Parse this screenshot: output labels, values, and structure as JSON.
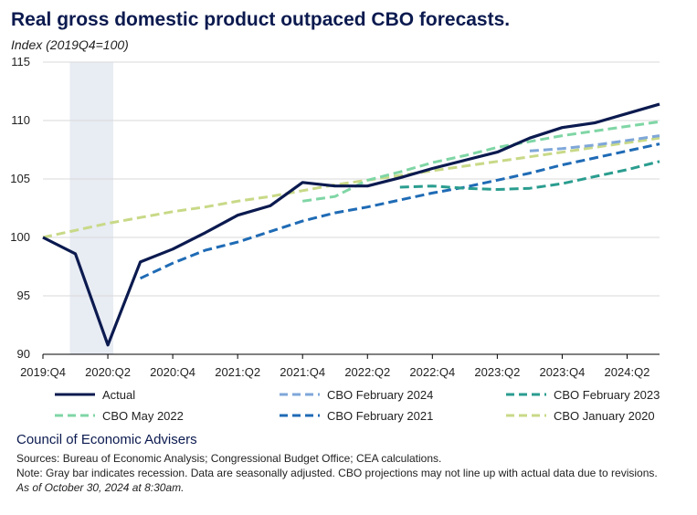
{
  "title": "Real gross domestic product outpaced CBO forecasts.",
  "subtitle": "Index (2019Q4=100)",
  "footer": {
    "org": "Council of Economic Advisers",
    "sources": "Sources: Bureau of Economic Analysis; Congressional Budget Office; CEA calculations.",
    "note": "Note: Gray bar indicates recession. Data are seasonally adjusted. CBO projections may not line up with actual data due to revisions.",
    "asof": "As of October 30, 2024 at 8:30am."
  },
  "colors": {
    "actual": "#0b1a4f",
    "feb2024": "#7fa7d9",
    "feb2023": "#2a9d8f",
    "may2022": "#7fd6a5",
    "feb2021": "#1f6bb5",
    "jan2020": "#c8d987",
    "recession": "#e8ecf3"
  },
  "chart_data": {
    "type": "line",
    "categories": [
      "2019:Q4",
      "2020:Q1",
      "2020:Q2",
      "2020:Q3",
      "2020:Q4",
      "2021:Q1",
      "2021:Q2",
      "2021:Q3",
      "2021:Q4",
      "2022:Q1",
      "2022:Q2",
      "2022:Q3",
      "2022:Q4",
      "2023:Q1",
      "2023:Q2",
      "2023:Q3",
      "2023:Q4",
      "2024:Q1",
      "2024:Q2",
      "2024:Q3"
    ],
    "tick_labels": [
      "2019:Q4",
      "2020:Q2",
      "2020:Q4",
      "2021:Q2",
      "2021:Q4",
      "2022:Q2",
      "2022:Q4",
      "2023:Q2",
      "2023:Q4",
      "2024:Q2"
    ],
    "ylim": [
      90,
      115
    ],
    "yticks": [
      90,
      95,
      100,
      105,
      110,
      115
    ],
    "grid": true,
    "legend_position": "bottom",
    "recession": {
      "start": "2020:Q1",
      "end": "2020:Q2"
    },
    "series": [
      {
        "name": "Actual",
        "key": "actual",
        "dash": false,
        "x": [
          "2019:Q4",
          "2020:Q1",
          "2020:Q2",
          "2020:Q3",
          "2020:Q4",
          "2021:Q1",
          "2021:Q2",
          "2021:Q3",
          "2021:Q4",
          "2022:Q1",
          "2022:Q2",
          "2022:Q3",
          "2022:Q4",
          "2023:Q1",
          "2023:Q2",
          "2023:Q3",
          "2023:Q4",
          "2024:Q1",
          "2024:Q2",
          "2024:Q3"
        ],
        "values": [
          100.0,
          98.6,
          90.8,
          97.9,
          99.0,
          100.4,
          101.9,
          102.7,
          104.7,
          104.4,
          104.4,
          105.1,
          105.9,
          106.6,
          107.3,
          108.5,
          109.4,
          109.8,
          110.6,
          111.4
        ]
      },
      {
        "name": "CBO February 2024",
        "key": "feb2024",
        "dash": true,
        "x": [
          "2023:Q3",
          "2023:Q4",
          "2024:Q1",
          "2024:Q2",
          "2024:Q3"
        ],
        "values": [
          107.4,
          107.6,
          107.9,
          108.3,
          108.7
        ]
      },
      {
        "name": "CBO February 2023",
        "key": "feb2023",
        "dash": true,
        "x": [
          "2022:Q3",
          "2022:Q4",
          "2023:Q1",
          "2023:Q2",
          "2023:Q3",
          "2023:Q4",
          "2024:Q1",
          "2024:Q2",
          "2024:Q3"
        ],
        "values": [
          104.3,
          104.4,
          104.2,
          104.1,
          104.2,
          104.6,
          105.2,
          105.8,
          106.5
        ]
      },
      {
        "name": "CBO May 2022",
        "key": "may2022",
        "dash": true,
        "x": [
          "2021:Q4",
          "2022:Q1",
          "2022:Q2",
          "2022:Q3",
          "2022:Q4",
          "2023:Q1",
          "2023:Q2",
          "2023:Q3",
          "2023:Q4",
          "2024:Q1",
          "2024:Q2",
          "2024:Q3"
        ],
        "values": [
          103.1,
          103.5,
          104.9,
          105.6,
          106.4,
          107.0,
          107.7,
          108.2,
          108.7,
          109.1,
          109.5,
          109.9
        ]
      },
      {
        "name": "CBO February 2021",
        "key": "feb2021",
        "dash": true,
        "x": [
          "2020:Q3",
          "2020:Q4",
          "2021:Q1",
          "2021:Q2",
          "2021:Q3",
          "2021:Q4",
          "2022:Q1",
          "2022:Q2",
          "2022:Q3",
          "2022:Q4",
          "2023:Q1",
          "2023:Q2",
          "2023:Q3",
          "2023:Q4",
          "2024:Q1",
          "2024:Q2",
          "2024:Q3"
        ],
        "values": [
          96.5,
          97.8,
          98.9,
          99.6,
          100.5,
          101.4,
          102.1,
          102.6,
          103.2,
          103.8,
          104.3,
          104.9,
          105.5,
          106.2,
          106.8,
          107.4,
          108.0
        ]
      },
      {
        "name": "CBO January 2020",
        "key": "jan2020",
        "dash": true,
        "x": [
          "2019:Q4",
          "2020:Q1",
          "2020:Q2",
          "2020:Q3",
          "2020:Q4",
          "2021:Q1",
          "2021:Q2",
          "2021:Q3",
          "2021:Q4",
          "2022:Q1",
          "2022:Q2",
          "2022:Q3",
          "2022:Q4",
          "2023:Q1",
          "2023:Q2",
          "2023:Q3",
          "2023:Q4",
          "2024:Q1",
          "2024:Q2",
          "2024:Q3"
        ],
        "values": [
          100.0,
          100.6,
          101.2,
          101.7,
          102.2,
          102.6,
          103.1,
          103.5,
          104.0,
          104.5,
          104.9,
          105.3,
          105.7,
          106.1,
          106.5,
          106.9,
          107.3,
          107.7,
          108.1,
          108.5
        ]
      }
    ]
  }
}
